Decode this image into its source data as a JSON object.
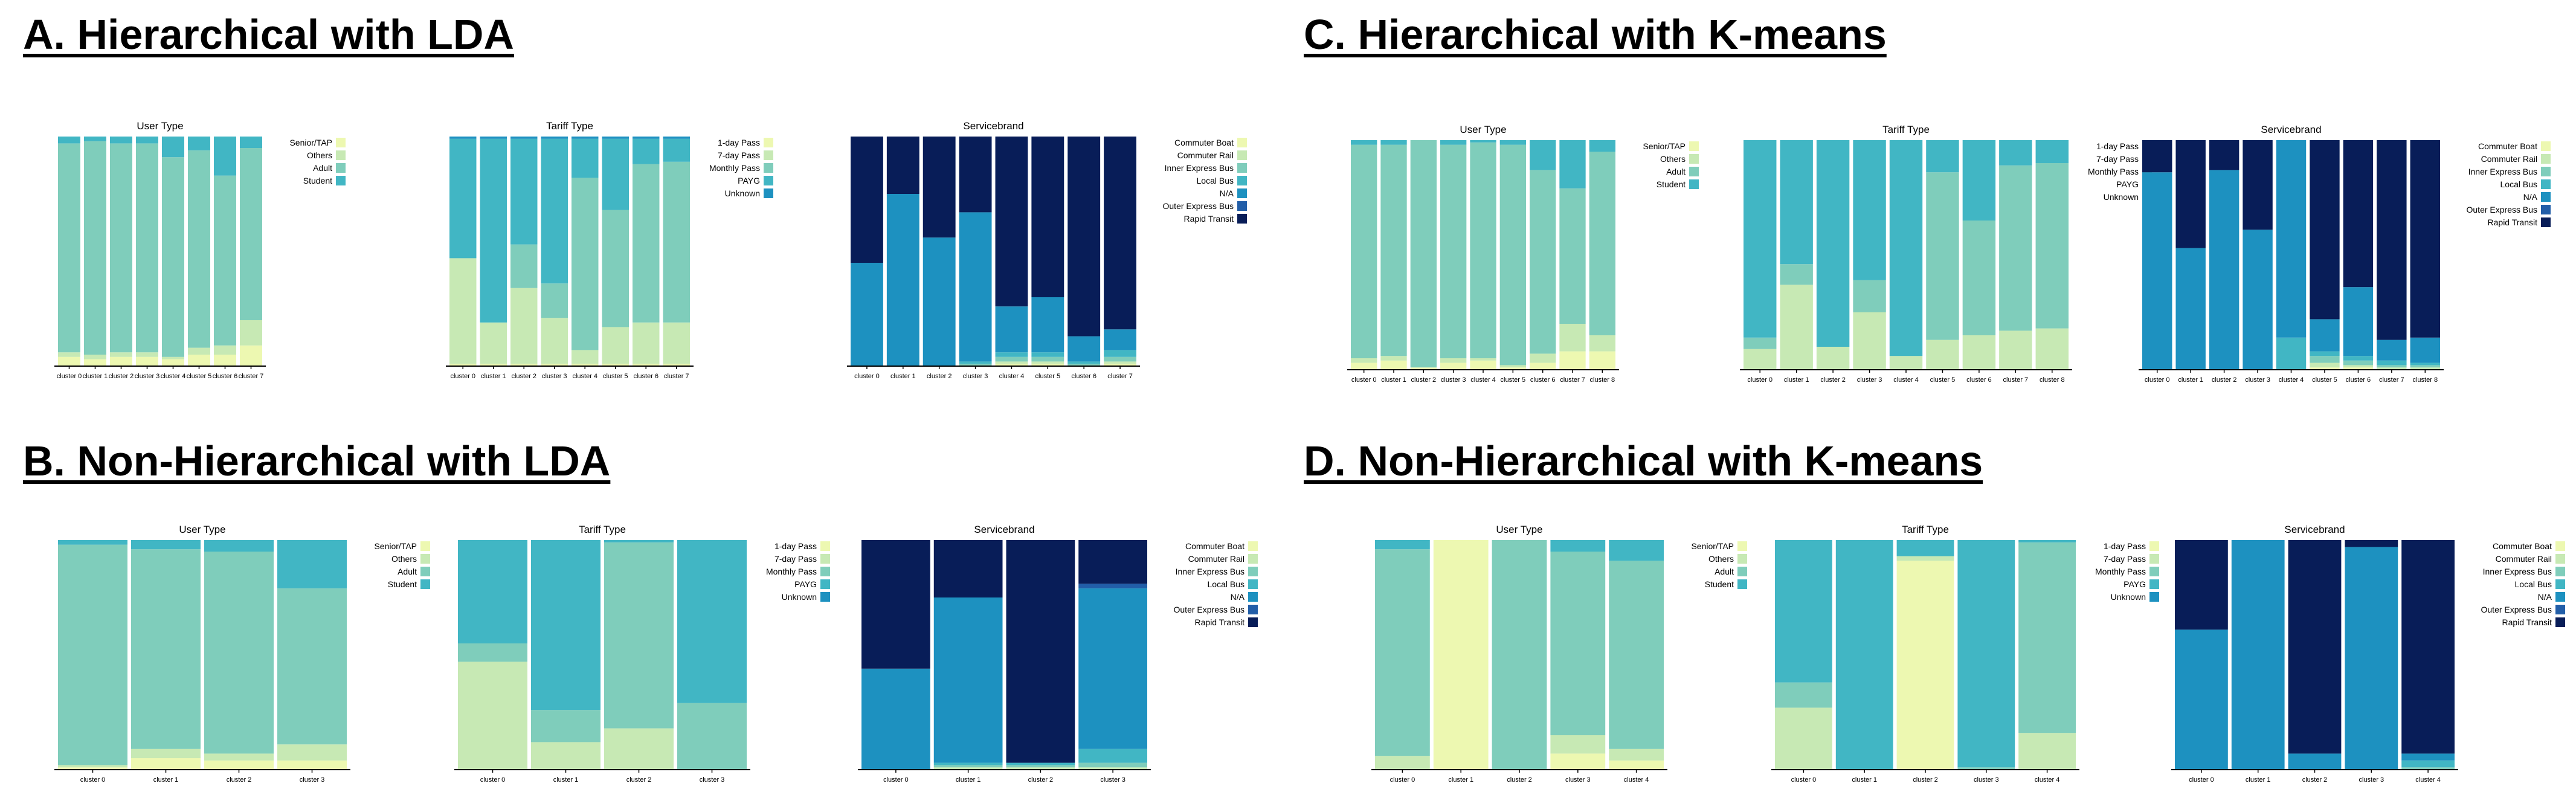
{
  "colors": {
    "user": [
      "#edf8b1",
      "#c7e9b4",
      "#7fcdbb",
      "#41b6c4"
    ],
    "tariff": [
      "#edf8b1",
      "#c7e9b4",
      "#7fcdbb",
      "#41b6c4",
      "#1d91c0"
    ],
    "service": [
      "#edf8b1",
      "#c7e9b4",
      "#7fcdbb",
      "#41b6c4",
      "#1d91c0",
      "#225ea8",
      "#081d58"
    ]
  },
  "panels": [
    {
      "id": "A",
      "title": "A. Hierarchical with LDA"
    },
    {
      "id": "B",
      "title": "B. Non-Hierarchical with LDA"
    },
    {
      "id": "C",
      "title": "C. Hierarchical with K-means"
    },
    {
      "id": "D",
      "title": "D. Non-Hierarchical with K-means"
    }
  ],
  "chart_data": [
    {
      "panel": "A",
      "type": "bar",
      "stacked": true,
      "normalized": true,
      "title": "User Type",
      "legend_position": "right",
      "color_set": "user",
      "categories": [
        "cluster 0",
        "cluster 1",
        "cluster 2",
        "cluster 3",
        "cluster 4",
        "cluster 5",
        "cluster 6",
        "cluster 7"
      ],
      "series": [
        {
          "name": "Senior/TAP",
          "values": [
            0.04,
            0.03,
            0.04,
            0.04,
            0.03,
            0.05,
            0.05,
            0.09
          ]
        },
        {
          "name": "Others",
          "values": [
            0.02,
            0.02,
            0.02,
            0.02,
            0.01,
            0.03,
            0.04,
            0.11
          ]
        },
        {
          "name": "Adult",
          "values": [
            0.91,
            0.93,
            0.91,
            0.91,
            0.87,
            0.86,
            0.74,
            0.75
          ]
        },
        {
          "name": "Student",
          "values": [
            0.03,
            0.02,
            0.03,
            0.03,
            0.09,
            0.06,
            0.17,
            0.05
          ]
        }
      ]
    },
    {
      "panel": "A",
      "type": "bar",
      "stacked": true,
      "normalized": true,
      "title": "Tariff Type",
      "legend_position": "right",
      "color_set": "tariff",
      "categories": [
        "cluster 0",
        "cluster 1",
        "cluster 2",
        "cluster 3",
        "cluster 4",
        "cluster 5",
        "cluster 6",
        "cluster 7"
      ],
      "series": [
        {
          "name": "1-day Pass",
          "values": [
            0.01,
            0.01,
            0.01,
            0.01,
            0.01,
            0.01,
            0.01,
            0.01
          ]
        },
        {
          "name": "7-day Pass",
          "values": [
            0.46,
            0.18,
            0.33,
            0.2,
            0.06,
            0.16,
            0.18,
            0.18
          ]
        },
        {
          "name": "Monthly Pass",
          "values": [
            0.0,
            0.0,
            0.19,
            0.15,
            0.75,
            0.51,
            0.69,
            0.7
          ]
        },
        {
          "name": "PAYG",
          "values": [
            0.52,
            0.8,
            0.46,
            0.63,
            0.17,
            0.31,
            0.11,
            0.1
          ]
        },
        {
          "name": "Unknown",
          "values": [
            0.01,
            0.01,
            0.01,
            0.01,
            0.01,
            0.01,
            0.01,
            0.01
          ]
        }
      ]
    },
    {
      "panel": "A",
      "type": "bar",
      "stacked": true,
      "normalized": true,
      "title": "Servicebrand",
      "legend_position": "right",
      "color_set": "service",
      "categories": [
        "cluster 0",
        "cluster 1",
        "cluster 2",
        "cluster 3",
        "cluster 4",
        "cluster 5",
        "cluster 6",
        "cluster 7"
      ],
      "series": [
        {
          "name": "Commuter Boat",
          "values": [
            0.0,
            0.0,
            0.0,
            0.0,
            0.01,
            0.01,
            0.0,
            0.01
          ]
        },
        {
          "name": "Commuter Rail",
          "values": [
            0.0,
            0.0,
            0.0,
            0.0,
            0.01,
            0.01,
            0.0,
            0.01
          ]
        },
        {
          "name": "Inner Express Bus",
          "values": [
            0.0,
            0.0,
            0.0,
            0.01,
            0.02,
            0.02,
            0.01,
            0.02
          ]
        },
        {
          "name": "Local Bus",
          "values": [
            0.0,
            0.0,
            0.0,
            0.01,
            0.02,
            0.02,
            0.01,
            0.03
          ]
        },
        {
          "name": "N/A",
          "values": [
            0.45,
            0.75,
            0.56,
            0.65,
            0.2,
            0.24,
            0.11,
            0.09
          ]
        },
        {
          "name": "Outer Express Bus",
          "values": [
            0.0,
            0.0,
            0.0,
            0.0,
            0.0,
            0.0,
            0.0,
            0.0
          ]
        },
        {
          "name": "Rapid Transit",
          "values": [
            0.55,
            0.25,
            0.44,
            0.33,
            0.74,
            0.7,
            0.87,
            0.84
          ]
        }
      ]
    },
    {
      "panel": "B",
      "type": "bar",
      "stacked": true,
      "normalized": true,
      "title": "User Type",
      "legend_position": "right",
      "color_set": "user",
      "categories": [
        "cluster 0",
        "cluster 1",
        "cluster 2",
        "cluster 3"
      ],
      "series": [
        {
          "name": "Senior/TAP",
          "values": [
            0.01,
            0.05,
            0.04,
            0.04
          ]
        },
        {
          "name": "Others",
          "values": [
            0.01,
            0.04,
            0.03,
            0.07
          ]
        },
        {
          "name": "Adult",
          "values": [
            0.96,
            0.87,
            0.88,
            0.68
          ]
        },
        {
          "name": "Student",
          "values": [
            0.02,
            0.04,
            0.05,
            0.21
          ]
        }
      ]
    },
    {
      "panel": "B",
      "type": "bar",
      "stacked": true,
      "normalized": true,
      "title": "Tariff Type",
      "legend_position": "right",
      "color_set": "tariff",
      "categories": [
        "cluster 0",
        "cluster 1",
        "cluster 2",
        "cluster 3"
      ],
      "series": [
        {
          "name": "1-day Pass",
          "values": [
            0.0,
            0.0,
            0.0,
            0.0
          ]
        },
        {
          "name": "7-day Pass",
          "values": [
            0.47,
            0.12,
            0.18,
            0.0
          ]
        },
        {
          "name": "Monthly Pass",
          "values": [
            0.08,
            0.14,
            0.81,
            0.29
          ]
        },
        {
          "name": "PAYG",
          "values": [
            0.45,
            0.74,
            0.01,
            0.71
          ]
        },
        {
          "name": "Unknown",
          "values": [
            0.0,
            0.0,
            0.0,
            0.0
          ]
        }
      ]
    },
    {
      "panel": "B",
      "type": "bar",
      "stacked": true,
      "normalized": true,
      "title": "Servicebrand",
      "legend_position": "right",
      "color_set": "service",
      "categories": [
        "cluster 0",
        "cluster 1",
        "cluster 2",
        "cluster 3"
      ],
      "series": [
        {
          "name": "Commuter Boat",
          "values": [
            0.0,
            0.0,
            0.0,
            0.0
          ]
        },
        {
          "name": "Commuter Rail",
          "values": [
            0.0,
            0.01,
            0.01,
            0.01
          ]
        },
        {
          "name": "Inner Express Bus",
          "values": [
            0.0,
            0.01,
            0.01,
            0.02
          ]
        },
        {
          "name": "Local Bus",
          "values": [
            0.0,
            0.01,
            0.01,
            0.06
          ]
        },
        {
          "name": "N/A",
          "values": [
            0.44,
            0.72,
            0.0,
            0.7
          ]
        },
        {
          "name": "Outer Express Bus",
          "values": [
            0.0,
            0.0,
            0.0,
            0.02
          ]
        },
        {
          "name": "Rapid Transit",
          "values": [
            0.56,
            0.25,
            0.97,
            0.19
          ]
        }
      ]
    },
    {
      "panel": "C",
      "type": "bar",
      "stacked": true,
      "normalized": true,
      "title": "User Type",
      "legend_position": "right",
      "color_set": "user",
      "categories": [
        "cluster 0",
        "cluster 1",
        "cluster 2",
        "cluster 3",
        "cluster 4",
        "cluster 5",
        "cluster 6",
        "cluster 7",
        "cluster 8"
      ],
      "series": [
        {
          "name": "Senior/TAP",
          "values": [
            0.03,
            0.04,
            0.01,
            0.03,
            0.04,
            0.01,
            0.03,
            0.08,
            0.08
          ]
        },
        {
          "name": "Others",
          "values": [
            0.02,
            0.02,
            0.0,
            0.02,
            0.01,
            0.01,
            0.04,
            0.12,
            0.07
          ]
        },
        {
          "name": "Adult",
          "values": [
            0.93,
            0.92,
            0.99,
            0.93,
            0.94,
            0.96,
            0.8,
            0.59,
            0.8
          ]
        },
        {
          "name": "Student",
          "values": [
            0.02,
            0.02,
            0.0,
            0.02,
            0.01,
            0.02,
            0.13,
            0.21,
            0.05
          ]
        }
      ]
    },
    {
      "panel": "C",
      "type": "bar",
      "stacked": true,
      "normalized": true,
      "title": "Tariff Type",
      "legend_position": "right",
      "color_set": "tariff",
      "categories": [
        "cluster 0",
        "cluster 1",
        "cluster 2",
        "cluster 3",
        "cluster 4",
        "cluster 5",
        "cluster 6",
        "cluster 7",
        "cluster 8"
      ],
      "series": [
        {
          "name": "1-day Pass",
          "values": [
            0.0,
            0.0,
            0.0,
            0.0,
            0.0,
            0.0,
            0.0,
            0.0,
            0.0
          ]
        },
        {
          "name": "7-day Pass",
          "values": [
            0.09,
            0.37,
            0.1,
            0.25,
            0.06,
            0.13,
            0.15,
            0.17,
            0.18
          ]
        },
        {
          "name": "Monthly Pass",
          "values": [
            0.05,
            0.09,
            0.0,
            0.14,
            0.0,
            0.73,
            0.5,
            0.72,
            0.72
          ]
        },
        {
          "name": "PAYG",
          "values": [
            0.86,
            0.54,
            0.9,
            0.61,
            0.94,
            0.14,
            0.35,
            0.11,
            0.1
          ]
        },
        {
          "name": "Unknown",
          "values": [
            0.0,
            0.0,
            0.0,
            0.0,
            0.0,
            0.0,
            0.0,
            0.0,
            0.0
          ]
        }
      ]
    },
    {
      "panel": "C",
      "type": "bar",
      "stacked": true,
      "normalized": true,
      "title": "Servicebrand",
      "legend_position": "right",
      "color_set": "service",
      "categories": [
        "cluster 0",
        "cluster 1",
        "cluster 2",
        "cluster 3",
        "cluster 4",
        "cluster 5",
        "cluster 6",
        "cluster 7",
        "cluster 8"
      ],
      "series": [
        {
          "name": "Commuter Boat",
          "values": [
            0.0,
            0.0,
            0.0,
            0.0,
            0.0,
            0.01,
            0.01,
            0.0,
            0.0
          ]
        },
        {
          "name": "Commuter Rail",
          "values": [
            0.0,
            0.0,
            0.0,
            0.0,
            0.0,
            0.02,
            0.01,
            0.01,
            0.01
          ]
        },
        {
          "name": "Inner Express Bus",
          "values": [
            0.0,
            0.0,
            0.0,
            0.0,
            0.0,
            0.03,
            0.02,
            0.01,
            0.01
          ]
        },
        {
          "name": "Local Bus",
          "values": [
            0.0,
            0.0,
            0.0,
            0.0,
            0.14,
            0.02,
            0.02,
            0.02,
            0.01
          ]
        },
        {
          "name": "N/A",
          "values": [
            0.86,
            0.53,
            0.87,
            0.61,
            0.86,
            0.14,
            0.3,
            0.09,
            0.11
          ]
        },
        {
          "name": "Outer Express Bus",
          "values": [
            0.0,
            0.0,
            0.0,
            0.0,
            0.0,
            0.0,
            0.0,
            0.0,
            0.0
          ]
        },
        {
          "name": "Rapid Transit",
          "values": [
            0.14,
            0.47,
            0.13,
            0.39,
            0.0,
            0.78,
            0.64,
            0.87,
            0.86
          ]
        }
      ]
    },
    {
      "panel": "D",
      "type": "bar",
      "stacked": true,
      "normalized": true,
      "title": "User Type",
      "legend_position": "right",
      "color_set": "user",
      "categories": [
        "cluster 0",
        "cluster 1",
        "cluster 2",
        "cluster 3",
        "cluster 4"
      ],
      "series": [
        {
          "name": "Senior/TAP",
          "values": [
            0.0,
            1.0,
            0.0,
            0.07,
            0.04
          ]
        },
        {
          "name": "Others",
          "values": [
            0.06,
            0.0,
            0.0,
            0.08,
            0.05
          ]
        },
        {
          "name": "Adult",
          "values": [
            0.9,
            0.0,
            1.0,
            0.8,
            0.82
          ]
        },
        {
          "name": "Student",
          "values": [
            0.04,
            0.0,
            0.0,
            0.05,
            0.09
          ]
        }
      ]
    },
    {
      "panel": "D",
      "type": "bar",
      "stacked": true,
      "normalized": true,
      "title": "Tariff Type",
      "legend_position": "right",
      "color_set": "tariff",
      "categories": [
        "cluster 0",
        "cluster 1",
        "cluster 2",
        "cluster 3",
        "cluster 4"
      ],
      "series": [
        {
          "name": "1-day Pass",
          "values": [
            0.0,
            0.0,
            0.91,
            0.0,
            0.0
          ]
        },
        {
          "name": "7-day Pass",
          "values": [
            0.27,
            0.0,
            0.02,
            0.0,
            0.16
          ]
        },
        {
          "name": "Monthly Pass",
          "values": [
            0.11,
            0.0,
            0.0,
            0.01,
            0.83
          ]
        },
        {
          "name": "PAYG",
          "values": [
            0.62,
            1.0,
            0.07,
            0.99,
            0.01
          ]
        },
        {
          "name": "Unknown",
          "values": [
            0.0,
            0.0,
            0.0,
            0.0,
            0.0
          ]
        }
      ]
    },
    {
      "panel": "D",
      "type": "bar",
      "stacked": true,
      "normalized": true,
      "title": "Servicebrand",
      "legend_position": "right",
      "color_set": "service",
      "categories": [
        "cluster 0",
        "cluster 1",
        "cluster 2",
        "cluster 3",
        "cluster 4"
      ],
      "series": [
        {
          "name": "Commuter Boat",
          "values": [
            0.0,
            0.0,
            0.0,
            0.0,
            0.0
          ]
        },
        {
          "name": "Commuter Rail",
          "values": [
            0.0,
            0.0,
            0.0,
            0.0,
            0.0
          ]
        },
        {
          "name": "Inner Express Bus",
          "values": [
            0.0,
            0.0,
            0.0,
            0.0,
            0.01
          ]
        },
        {
          "name": "Local Bus",
          "values": [
            0.0,
            0.0,
            0.0,
            0.0,
            0.03
          ]
        },
        {
          "name": "N/A",
          "values": [
            0.61,
            1.0,
            0.07,
            0.97,
            0.03
          ]
        },
        {
          "name": "Outer Express Bus",
          "values": [
            0.0,
            0.0,
            0.0,
            0.0,
            0.0
          ]
        },
        {
          "name": "Rapid Transit",
          "values": [
            0.39,
            0.0,
            0.93,
            0.03,
            0.93
          ]
        }
      ]
    }
  ]
}
